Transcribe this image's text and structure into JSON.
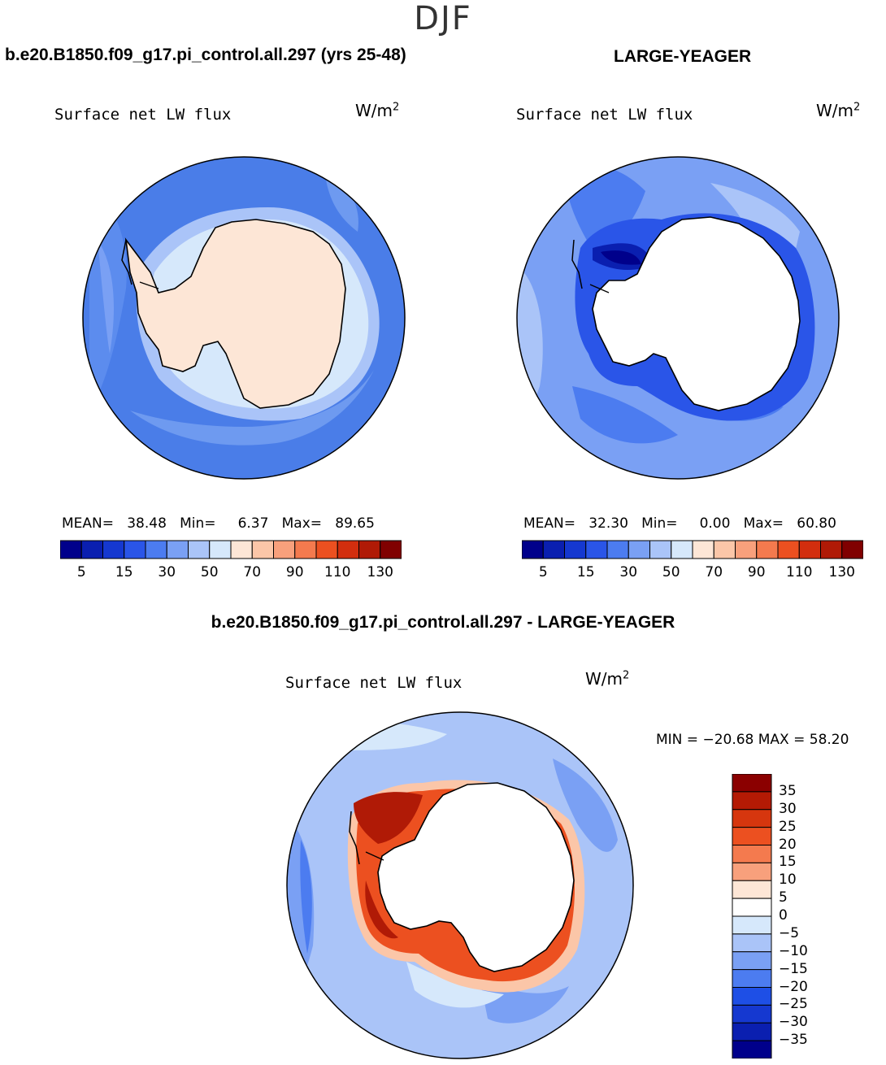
{
  "season": "DJF",
  "panels": [
    {
      "id": "model",
      "header": "b.e20.B1850.f09_g17.pi_control.all.297 (yrs 25-48)",
      "variable": "Surface net LW flux",
      "units_base": "W/m",
      "units_exp": "2",
      "stats": {
        "mean_label": "MEAN=",
        "mean": "38.48",
        "min_label": "Min=",
        "min": "6.37",
        "max_label": "Max=",
        "max": "89.65"
      }
    },
    {
      "id": "obs",
      "header": "LARGE-YEAGER",
      "variable": "Surface net LW flux",
      "units_base": "W/m",
      "units_exp": "2",
      "stats": {
        "mean_label": "MEAN=",
        "mean": "32.30",
        "min_label": "Min=",
        "min": "0.00",
        "max_label": "Max=",
        "max": "60.80"
      }
    },
    {
      "id": "diff",
      "header": "b.e20.B1850.f09_g17.pi_control.all.297 - LARGE-YEAGER",
      "variable": "Surface net LW flux",
      "units_base": "W/m",
      "units_exp": "2",
      "stats_line": "MIN = −20.68 MAX =  58.20"
    }
  ],
  "colorbar_abs": {
    "colors": [
      "#00008b",
      "#0a1fb0",
      "#1538d0",
      "#2a55e8",
      "#4c7cf0",
      "#7aa0f4",
      "#aac4f8",
      "#d6e8fb",
      "#fde6d6",
      "#fbc6a8",
      "#f8a07c",
      "#f47a4e",
      "#ec5020",
      "#d22e0e",
      "#b01a06",
      "#800000"
    ],
    "tick_labels": [
      "5",
      "15",
      "30",
      "50",
      "70",
      "90",
      "110",
      "130"
    ]
  },
  "colorbar_diff": {
    "colors_top_to_bottom": [
      "#8b0000",
      "#b41a04",
      "#d6360e",
      "#ec5020",
      "#f47a4e",
      "#f8a07c",
      "#fde6d6",
      "#ffffff",
      "#d6e8fb",
      "#aac4f8",
      "#7aa0f4",
      "#4c7cf0",
      "#1e4fe6",
      "#1538d0",
      "#0a1fb0",
      "#00008b"
    ],
    "tick_labels": [
      "35",
      "30",
      "25",
      "20",
      "15",
      "10",
      "5",
      "0",
      "−5",
      "−10",
      "−15",
      "−20",
      "−25",
      "−30",
      "−35"
    ]
  }
}
